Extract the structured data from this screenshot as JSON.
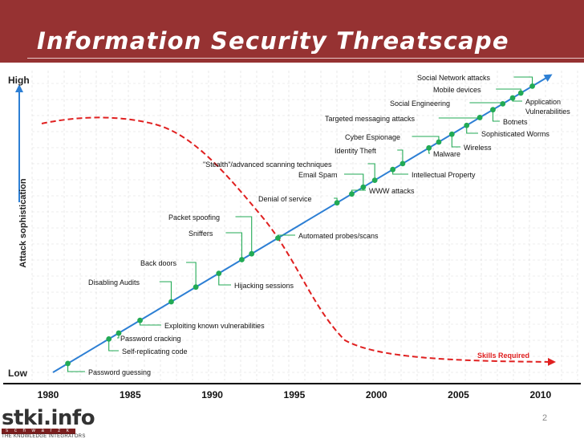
{
  "slide": {
    "title": "Information Security Threatscape",
    "page_number": "2"
  },
  "logo": {
    "name": "stki.info",
    "strip": "s c h w a r z k o p f",
    "tagline": "THE KNOWLEDGE INTEGRATORS"
  },
  "colors": {
    "header": "#963232",
    "trend_line": "#2d7fd4",
    "marker": "#22aa55",
    "leader": "#22aa55",
    "skills_curve": "#e02020"
  },
  "chart_data": {
    "type": "diagram",
    "ylabel": "Attack sophistication",
    "y_high_label": "High",
    "y_low_label": "Low",
    "x_ticks": [
      "1980",
      "1985",
      "1990",
      "1995",
      "2000",
      "2005",
      "2010"
    ],
    "curve_label": "Skills Required",
    "threats": [
      {
        "label": "Password guessing",
        "year": 1981.2
      },
      {
        "label": "Self-replicating code",
        "year": 1983.7
      },
      {
        "label": "Password cracking",
        "year": 1984.3
      },
      {
        "label": "Exploiting known vulnerabilities",
        "year": 1985.6
      },
      {
        "label": "Disabling Audits",
        "year": 1987.5
      },
      {
        "label": "Back doors",
        "year": 1989.0
      },
      {
        "label": "Hijacking sessions",
        "year": 1990.4
      },
      {
        "label": "Sniffers",
        "year": 1991.8
      },
      {
        "label": "Packet spoofing",
        "year": 1992.4
      },
      {
        "label": "Automated probes/scans",
        "year": 1994.0
      },
      {
        "label": "Denial of service",
        "year": 1997.6
      },
      {
        "label": "WWW attacks",
        "year": 1998.5
      },
      {
        "label": "Email Spam",
        "year": 1999.2
      },
      {
        "label": "\"Stealth\"/advanced scanning techniques",
        "year": 1999.9
      },
      {
        "label": "Intellectual Property",
        "year": 2001.0
      },
      {
        "label": "Identity Theft",
        "year": 2001.6
      },
      {
        "label": "Malware",
        "year": 2003.2
      },
      {
        "label": "Cyber Espionage",
        "year": 2003.8
      },
      {
        "label": "Wireless",
        "year": 2004.6
      },
      {
        "label": "Sophisticated Worms",
        "year": 2005.5
      },
      {
        "label": "Targeted messaging attacks",
        "year": 2006.3
      },
      {
        "label": "Botnets",
        "year": 2007.1
      },
      {
        "label": "Social Engineering",
        "year": 2007.7
      },
      {
        "label": "Application Vulnerabilities",
        "year": 2008.3
      },
      {
        "label": "Mobile devices",
        "year": 2008.8
      },
      {
        "label": "Social Network attacks",
        "year": 2009.5
      }
    ]
  }
}
